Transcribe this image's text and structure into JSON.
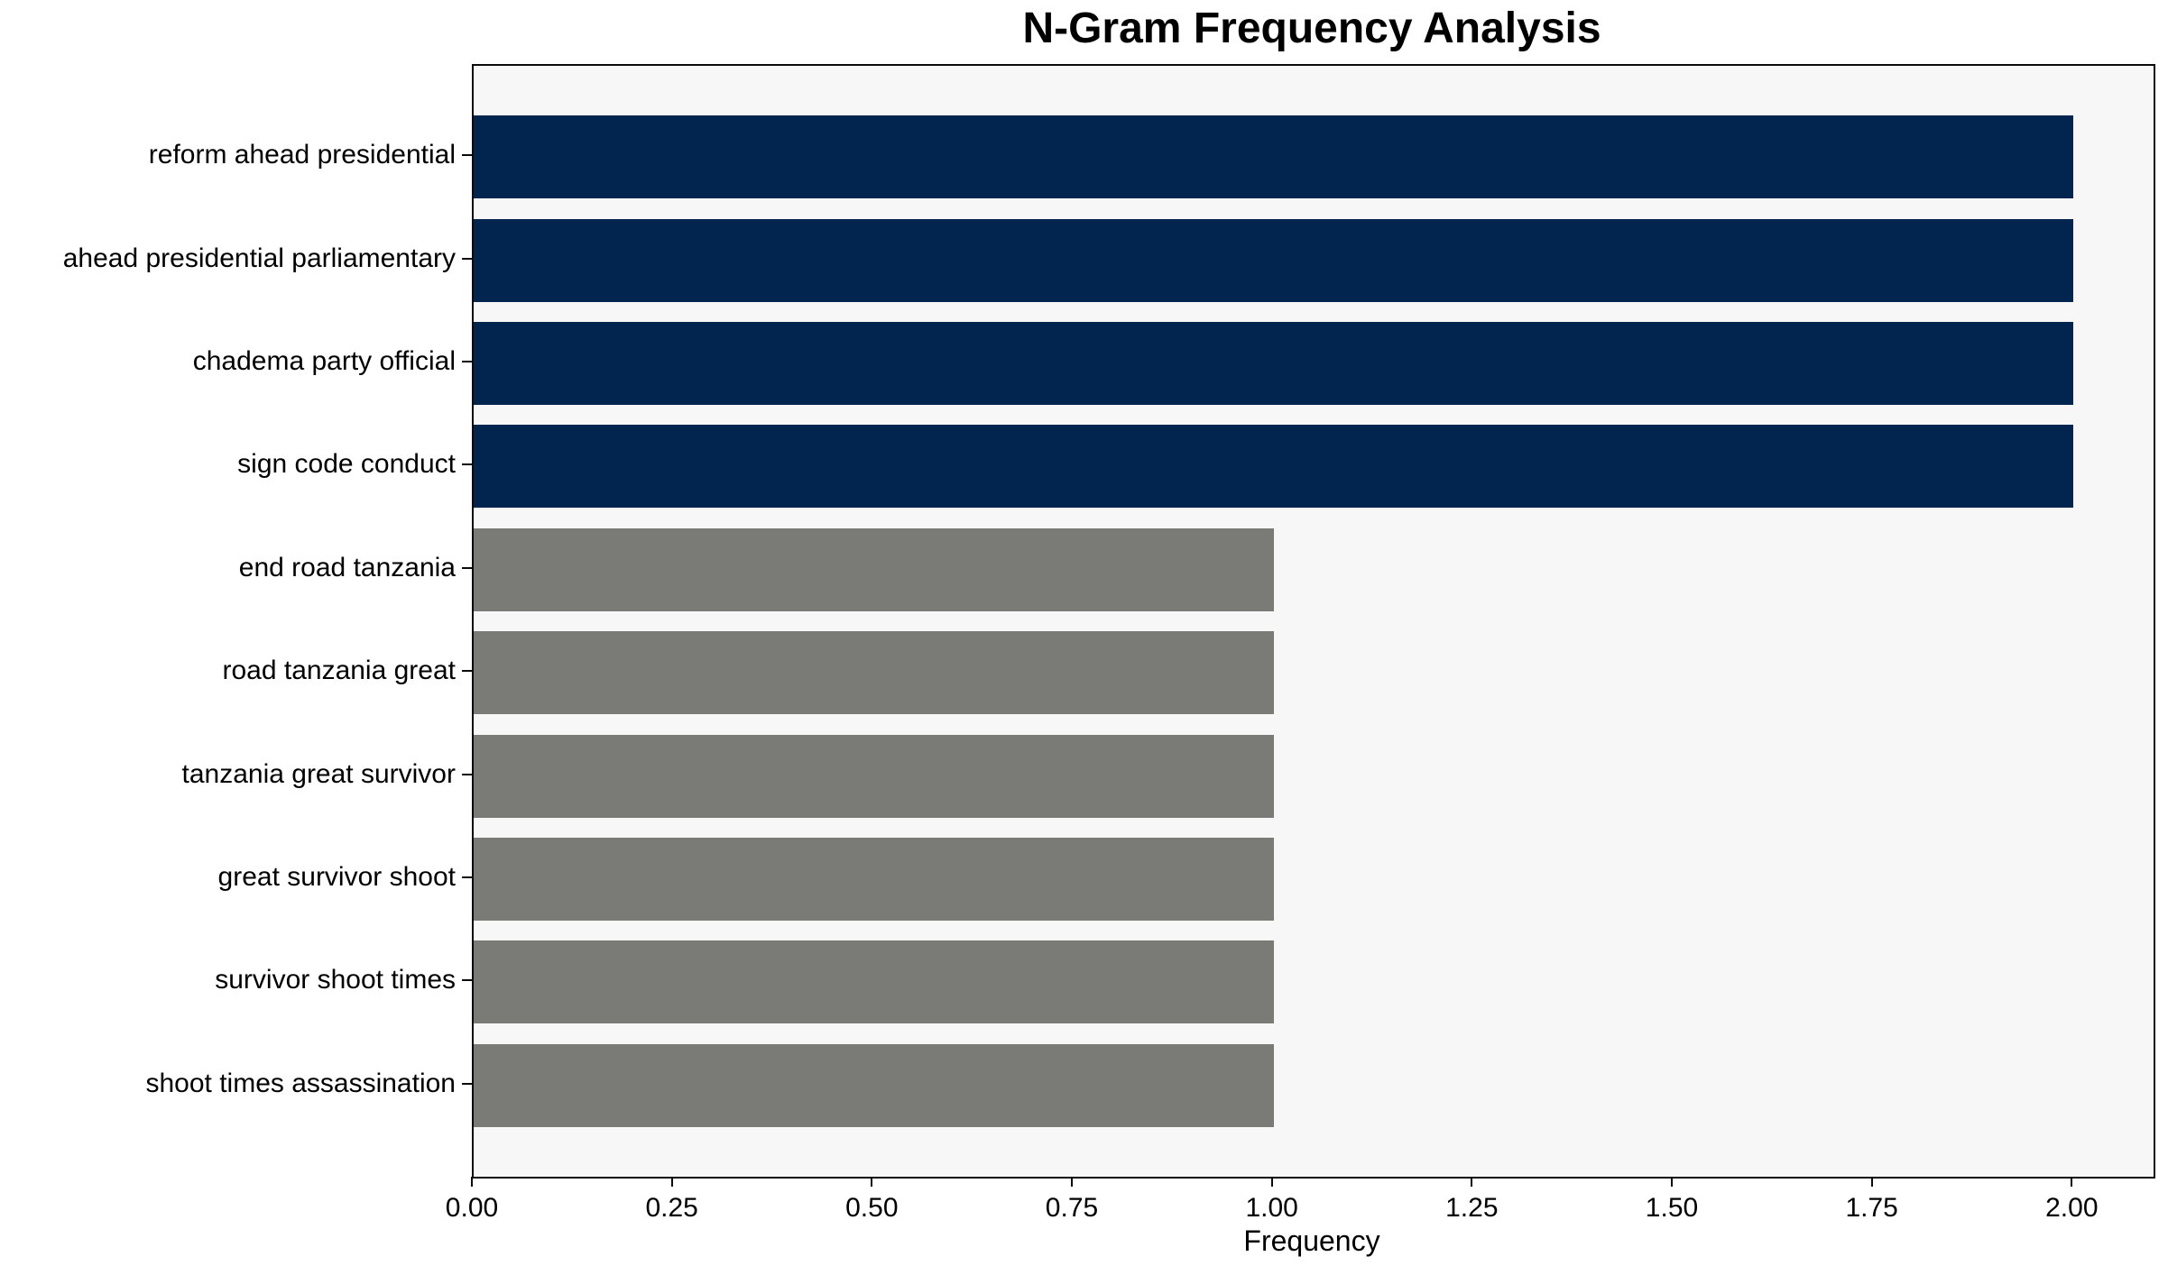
{
  "chart_data": {
    "type": "bar",
    "orientation": "horizontal",
    "title": "N-Gram Frequency Analysis",
    "xlabel": "Frequency",
    "ylabel": "",
    "categories": [
      "reform ahead presidential",
      "ahead presidential parliamentary",
      "chadema party official",
      "sign code conduct",
      "end road tanzania",
      "road tanzania great",
      "tanzania great survivor",
      "great survivor shoot",
      "survivor shoot times",
      "shoot times assassination"
    ],
    "values": [
      2,
      2,
      2,
      2,
      1,
      1,
      1,
      1,
      1,
      1
    ],
    "bar_colors": [
      "#02254f",
      "#02254f",
      "#02254f",
      "#02254f",
      "#7a7a77",
      "#7a7a77",
      "#7a7a77",
      "#7a7a77",
      "#7a7a77",
      "#7a7a77"
    ],
    "xlim": [
      0,
      2.1
    ],
    "xticks": [
      0,
      0.25,
      0.5,
      0.75,
      1.0,
      1.25,
      1.5,
      1.75,
      2.0
    ],
    "xtick_labels": [
      "0.00",
      "0.25",
      "0.50",
      "0.75",
      "1.00",
      "1.25",
      "1.50",
      "1.75",
      "2.00"
    ],
    "grid": false,
    "legend": null,
    "colors": {
      "accent_high": "#02254f",
      "accent_low": "#7a7a77",
      "plot_background": "#f7f7f8",
      "figure_background": "#ffffff",
      "spine": "#0a0a0a",
      "text": "#000000"
    }
  }
}
